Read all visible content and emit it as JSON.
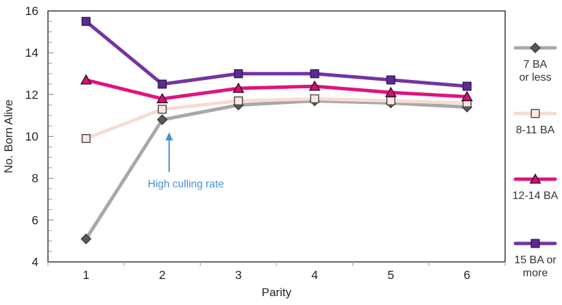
{
  "chart_data": {
    "type": "line",
    "title": "",
    "xlabel": "Parity",
    "ylabel": "No. Born Alive",
    "x": [
      1,
      2,
      3,
      4,
      5,
      6
    ],
    "xlim_categories": 6,
    "ylim": [
      4,
      16
    ],
    "ytick_step": 2,
    "yminor_step": 0.5,
    "ytick_labels": [
      "4",
      "6",
      "8",
      "10",
      "12",
      "14",
      "16"
    ],
    "grid": "off",
    "legend_position": "right",
    "series": [
      {
        "name": "7 BA or less",
        "legend_lines": [
          "7 BA",
          "or less"
        ],
        "marker": "diamond",
        "line_color": "#a8a8a8",
        "marker_fill": "#595959",
        "marker_stroke": "#3d3d3d",
        "values": [
          5.1,
          10.8,
          11.5,
          11.7,
          11.6,
          11.4
        ]
      },
      {
        "name": "8-11 BA",
        "legend_lines": [
          "8-11 BA"
        ],
        "marker": "square",
        "line_color": "#f7dcd3",
        "marker_fill": "#fae8e1",
        "marker_stroke": "#4d4d4d",
        "values": [
          9.9,
          11.3,
          11.7,
          11.8,
          11.7,
          11.6
        ]
      },
      {
        "name": "12-14 BA",
        "legend_lines": [
          "12-14 BA"
        ],
        "marker": "triangle",
        "line_color": "#e2127e",
        "marker_fill": "#d61073",
        "marker_stroke": "#34112b",
        "values": [
          12.7,
          11.8,
          12.3,
          12.4,
          12.1,
          11.9
        ]
      },
      {
        "name": "15 BA or more",
        "legend_lines": [
          "15 BA or",
          "more"
        ],
        "marker": "square",
        "line_color": "#7434a4",
        "marker_fill": "#5f2b8d",
        "marker_stroke": "#33195c",
        "values": [
          15.5,
          12.5,
          13.0,
          13.0,
          12.7,
          12.4
        ]
      }
    ],
    "annotation": {
      "text": "High culling rate",
      "color": "#4a90d9",
      "arrow_x_parity": 2.09,
      "arrow_from_y": 8.3,
      "arrow_to_y": 10.2,
      "text_x_parity": 2.31,
      "text_y": 7.75
    },
    "axis_text_color": "#262626",
    "axis_line_color": "#404040",
    "tick_color": "#a9a9a9",
    "legend_text_color": "#333333"
  }
}
